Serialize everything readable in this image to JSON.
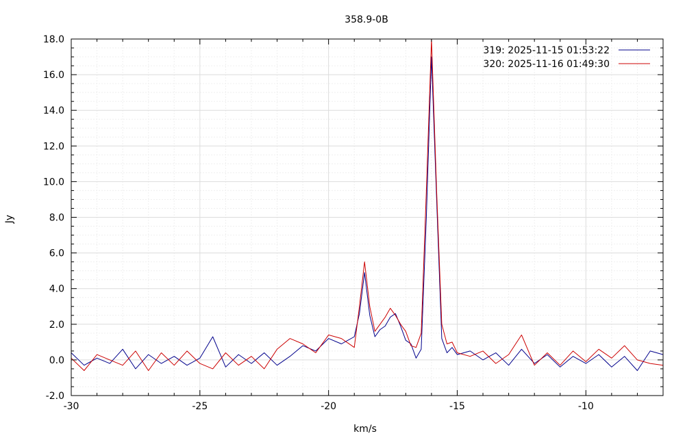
{
  "chart_data": {
    "type": "line",
    "title": "358.9-0B",
    "xlabel": "km/s",
    "ylabel": "Jy",
    "xlim": [
      -30,
      -7
    ],
    "ylim": [
      -2.0,
      18.0
    ],
    "x_ticks": [
      -30,
      -25,
      -20,
      -15,
      -10
    ],
    "x_tick_labels": [
      "-30",
      "-25",
      "-20",
      "-15",
      "-10"
    ],
    "y_ticks": [
      -2,
      0,
      2,
      4,
      6,
      8,
      10,
      12,
      14,
      16,
      18
    ],
    "y_tick_labels": [
      "-2.0",
      "0.0",
      "2.0",
      "4.0",
      "6.0",
      "8.0",
      "10.0",
      "12.0",
      "14.0",
      "16.0",
      "18.0"
    ],
    "grid": true,
    "legend_position": "top-right",
    "series": [
      {
        "name": "319:   2025-11-15 01:53:22",
        "color": "#00008b",
        "points": [
          [
            -30.0,
            0.4
          ],
          [
            -29.5,
            -0.3
          ],
          [
            -29.0,
            0.1
          ],
          [
            -28.5,
            -0.2
          ],
          [
            -28.0,
            0.6
          ],
          [
            -27.5,
            -0.5
          ],
          [
            -27.0,
            0.3
          ],
          [
            -26.5,
            -0.2
          ],
          [
            -26.0,
            0.2
          ],
          [
            -25.5,
            -0.3
          ],
          [
            -25.0,
            0.1
          ],
          [
            -24.5,
            1.3
          ],
          [
            -24.0,
            -0.4
          ],
          [
            -23.5,
            0.3
          ],
          [
            -23.0,
            -0.2
          ],
          [
            -22.5,
            0.4
          ],
          [
            -22.0,
            -0.3
          ],
          [
            -21.5,
            0.2
          ],
          [
            -21.0,
            0.8
          ],
          [
            -20.5,
            0.5
          ],
          [
            -20.0,
            1.2
          ],
          [
            -19.5,
            0.9
          ],
          [
            -19.0,
            1.3
          ],
          [
            -18.8,
            2.6
          ],
          [
            -18.6,
            4.9
          ],
          [
            -18.4,
            2.5
          ],
          [
            -18.2,
            1.3
          ],
          [
            -18.0,
            1.7
          ],
          [
            -17.8,
            1.9
          ],
          [
            -17.6,
            2.4
          ],
          [
            -17.4,
            2.6
          ],
          [
            -17.2,
            1.9
          ],
          [
            -17.0,
            1.1
          ],
          [
            -16.8,
            0.9
          ],
          [
            -16.6,
            0.1
          ],
          [
            -16.4,
            0.6
          ],
          [
            -16.2,
            8.0
          ],
          [
            -16.0,
            17.0
          ],
          [
            -15.8,
            9.0
          ],
          [
            -15.6,
            1.2
          ],
          [
            -15.4,
            0.4
          ],
          [
            -15.2,
            0.7
          ],
          [
            -15.0,
            0.3
          ],
          [
            -14.5,
            0.5
          ],
          [
            -14.0,
            0.0
          ],
          [
            -13.5,
            0.4
          ],
          [
            -13.0,
            -0.3
          ],
          [
            -12.5,
            0.6
          ],
          [
            -12.0,
            -0.2
          ],
          [
            -11.5,
            0.3
          ],
          [
            -11.0,
            -0.4
          ],
          [
            -10.5,
            0.2
          ],
          [
            -10.0,
            -0.2
          ],
          [
            -9.5,
            0.3
          ],
          [
            -9.0,
            -0.4
          ],
          [
            -8.5,
            0.2
          ],
          [
            -8.0,
            -0.6
          ],
          [
            -7.5,
            0.5
          ],
          [
            -7.0,
            0.3
          ]
        ]
      },
      {
        "name": "320:   2025-11-16 01:49:30",
        "color": "#cc0000",
        "points": [
          [
            -30.0,
            0.1
          ],
          [
            -29.5,
            -0.6
          ],
          [
            -29.0,
            0.3
          ],
          [
            -28.5,
            0.0
          ],
          [
            -28.0,
            -0.3
          ],
          [
            -27.5,
            0.5
          ],
          [
            -27.0,
            -0.6
          ],
          [
            -26.5,
            0.4
          ],
          [
            -26.0,
            -0.3
          ],
          [
            -25.5,
            0.5
          ],
          [
            -25.0,
            -0.2
          ],
          [
            -24.5,
            -0.5
          ],
          [
            -24.0,
            0.4
          ],
          [
            -23.5,
            -0.3
          ],
          [
            -23.0,
            0.2
          ],
          [
            -22.5,
            -0.5
          ],
          [
            -22.0,
            0.6
          ],
          [
            -21.5,
            1.2
          ],
          [
            -21.0,
            0.9
          ],
          [
            -20.5,
            0.4
          ],
          [
            -20.0,
            1.4
          ],
          [
            -19.5,
            1.2
          ],
          [
            -19.0,
            0.7
          ],
          [
            -18.8,
            3.0
          ],
          [
            -18.6,
            5.5
          ],
          [
            -18.4,
            3.0
          ],
          [
            -18.2,
            1.6
          ],
          [
            -18.0,
            2.0
          ],
          [
            -17.8,
            2.4
          ],
          [
            -17.6,
            2.9
          ],
          [
            -17.4,
            2.5
          ],
          [
            -17.2,
            2.0
          ],
          [
            -17.0,
            1.6
          ],
          [
            -16.8,
            0.8
          ],
          [
            -16.6,
            0.7
          ],
          [
            -16.4,
            1.5
          ],
          [
            -16.2,
            9.5
          ],
          [
            -16.0,
            18.0
          ],
          [
            -15.8,
            9.5
          ],
          [
            -15.6,
            2.0
          ],
          [
            -15.4,
            0.9
          ],
          [
            -15.2,
            1.0
          ],
          [
            -15.0,
            0.4
          ],
          [
            -14.5,
            0.2
          ],
          [
            -14.0,
            0.5
          ],
          [
            -13.5,
            -0.2
          ],
          [
            -13.0,
            0.3
          ],
          [
            -12.5,
            1.4
          ],
          [
            -12.0,
            -0.3
          ],
          [
            -11.5,
            0.4
          ],
          [
            -11.0,
            -0.3
          ],
          [
            -10.5,
            0.5
          ],
          [
            -10.0,
            -0.1
          ],
          [
            -9.5,
            0.6
          ],
          [
            -9.0,
            0.1
          ],
          [
            -8.5,
            0.8
          ],
          [
            -8.0,
            0.0
          ],
          [
            -7.5,
            -0.2
          ],
          [
            -7.0,
            -0.3
          ]
        ]
      }
    ]
  }
}
